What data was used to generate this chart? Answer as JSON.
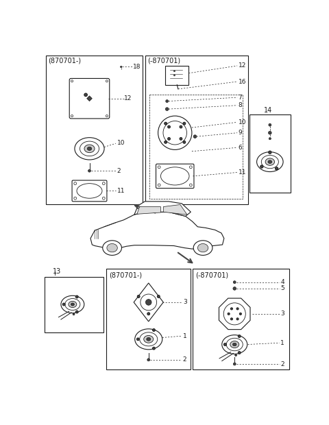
{
  "bg_color": "#ffffff",
  "lc": "#1a1a1a",
  "top_left_label": "(870701-)",
  "top_center_label": "(-870701)",
  "bottom_left_label2": "13",
  "bottom_center_label": "(870701-)",
  "bottom_right_label": "(-870701)",
  "label14": "14",
  "figsize": [
    4.8,
    6.2
  ],
  "dpi": 100
}
